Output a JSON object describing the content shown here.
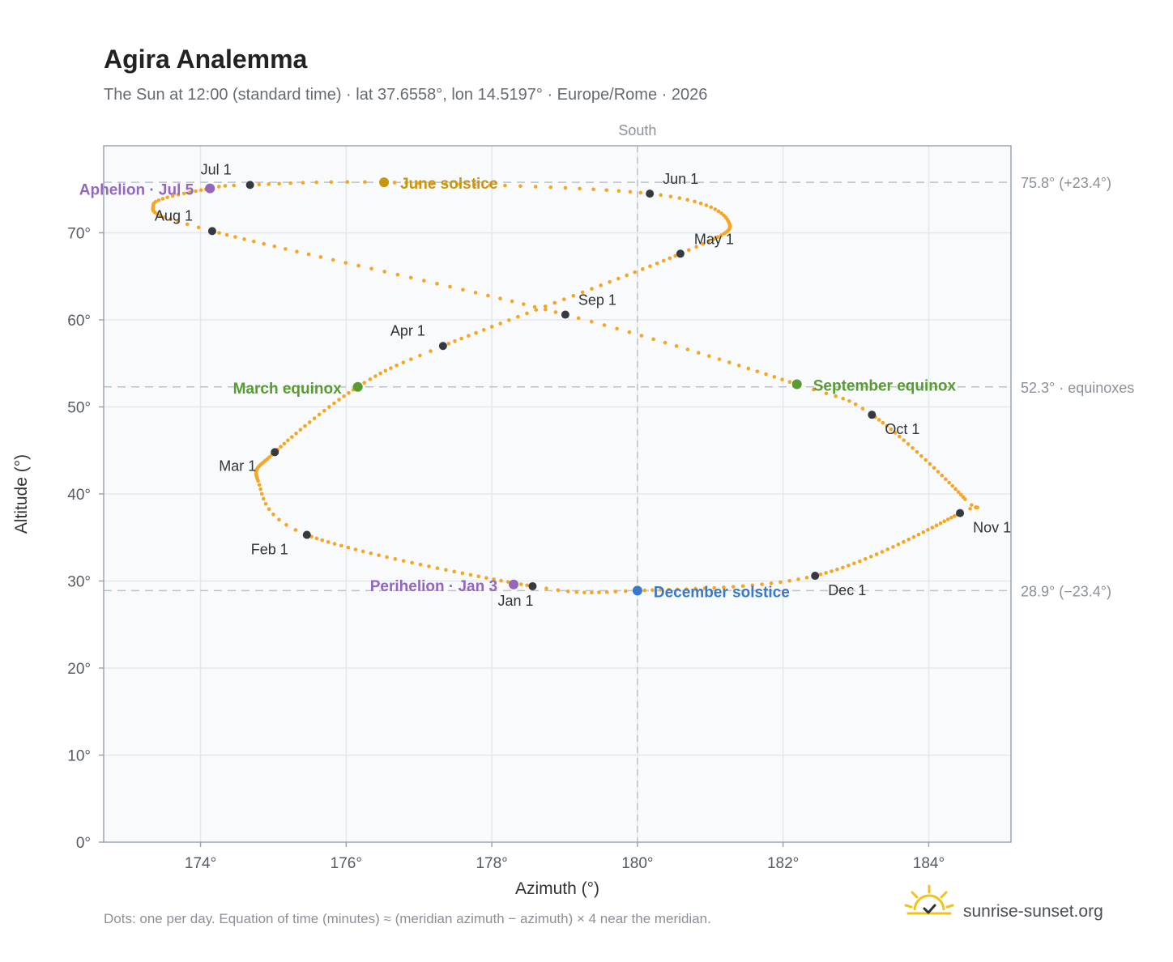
{
  "header": {
    "title": "Agira Analemma",
    "subtitle": "The Sun at 12:00 (standard time) · lat 37.6558°, lon 14.5197° · Europe/Rome · 2026"
  },
  "footer": {
    "note": "Dots: one per day. Equation of time (minutes) ≈ (meridian azimuth − azimuth) × 4 near the meridian.",
    "brand": "sunrise-sunset.org",
    "brand_icon": "sun-check-icon"
  },
  "colors": {
    "path": "#f5a623",
    "month_marker": "#343a40",
    "solstice_june": "#c8960c",
    "solstice_december": "#3a78c9",
    "equinox": "#5a9a32",
    "apsis": "#9467bd",
    "grid": "#e4e8ec",
    "reference_line": "#b8c4cc",
    "plot_bg": "#f8fafc",
    "plot_border": "#9aa5b1"
  },
  "chart_data": {
    "type": "scatter",
    "xlabel": "Azimuth (°)",
    "ylabel": "Altitude (°)",
    "xlim": [
      172.67,
      185.13
    ],
    "ylim": [
      0,
      80
    ],
    "xticks": [
      174,
      176,
      178,
      180,
      182,
      184
    ],
    "xtick_labels": [
      "174°",
      "176°",
      "178°",
      "180°",
      "182°",
      "184°"
    ],
    "yticks": [
      0,
      10,
      20,
      30,
      40,
      50,
      60,
      70
    ],
    "ytick_labels": [
      "0°",
      "10°",
      "20°",
      "30°",
      "40°",
      "50°",
      "60°",
      "70°"
    ],
    "grid": true,
    "meridian": {
      "azimuth": 180,
      "label": "South"
    },
    "reference_lines": [
      {
        "altitude": 75.8,
        "label": "75.8° (+23.4°)"
      },
      {
        "altitude": 52.3,
        "label": "52.3° · equinoxes"
      },
      {
        "altitude": 28.9,
        "label": "28.9° (−23.4°)"
      }
    ],
    "month_markers": [
      {
        "label": "Jan 1",
        "az": 178.56,
        "alt": 29.4
      },
      {
        "label": "Feb 1",
        "az": 175.46,
        "alt": 35.3
      },
      {
        "label": "Mar 1",
        "az": 175.02,
        "alt": 44.8
      },
      {
        "label": "Apr 1",
        "az": 177.33,
        "alt": 57.0
      },
      {
        "label": "May 1",
        "az": 180.59,
        "alt": 67.6
      },
      {
        "label": "Jun 1",
        "az": 180.17,
        "alt": 74.5
      },
      {
        "label": "Jul 1",
        "az": 174.68,
        "alt": 75.5
      },
      {
        "label": "Aug 1",
        "az": 174.16,
        "alt": 70.2
      },
      {
        "label": "Sep 1",
        "az": 179.01,
        "alt": 60.6
      },
      {
        "label": "Oct 1",
        "az": 183.22,
        "alt": 49.1
      },
      {
        "label": "Nov 1",
        "az": 184.43,
        "alt": 37.8
      },
      {
        "label": "Dec 1",
        "az": 182.44,
        "alt": 30.6
      }
    ],
    "events": [
      {
        "label": "June solstice",
        "az": 176.52,
        "alt": 75.8,
        "color": "#c8960c"
      },
      {
        "label": "March equinox",
        "az": 176.16,
        "alt": 52.3,
        "color": "#5a9a32"
      },
      {
        "label": "September equinox",
        "az": 182.19,
        "alt": 52.6,
        "color": "#5a9a32"
      },
      {
        "label": "December solstice",
        "az": 180.0,
        "alt": 28.9,
        "color": "#3a78c9"
      },
      {
        "label": "Perihelion · Jan 3",
        "az": 178.3,
        "alt": 29.6,
        "color": "#9467bd"
      },
      {
        "label": "Aphelion · Jul 5",
        "az": 174.13,
        "alt": 75.1,
        "color": "#9467bd"
      }
    ],
    "extremes": {
      "west": {
        "az": 173.35,
        "alt": 73.2
      },
      "east_top": {
        "az": 181.25,
        "alt": 71.3
      },
      "mid_west": {
        "az": 174.79,
        "alt": 41.5
      },
      "east": {
        "az": 184.5,
        "alt": 39.4
      }
    }
  }
}
